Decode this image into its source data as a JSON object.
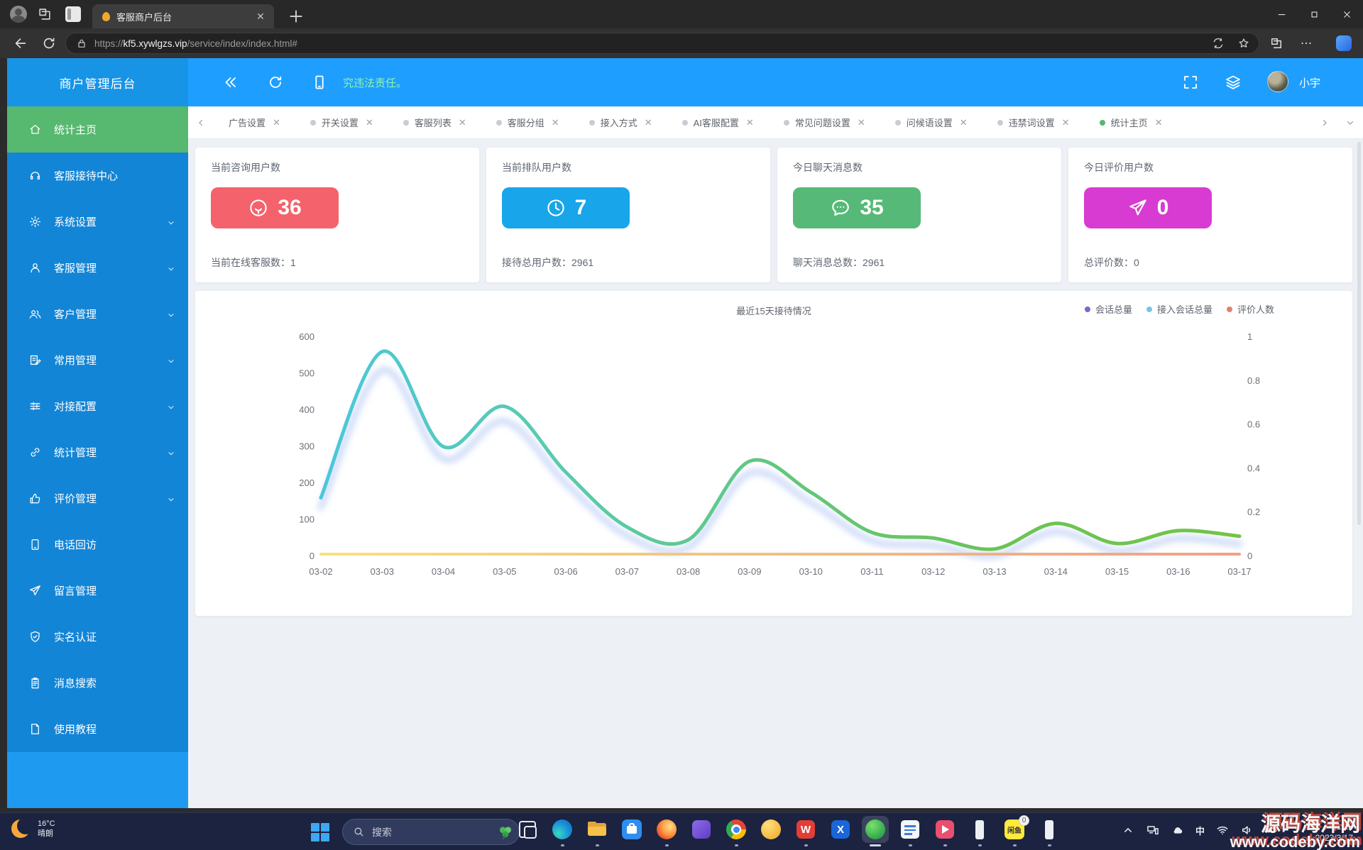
{
  "browser": {
    "tab_title": "客服商户后台",
    "url": {
      "scheme": "https://",
      "host": "kf5.xywlgzs.vip",
      "path": "/service/index/index.html#"
    }
  },
  "app_header": {
    "marquee_text": "究违法责任。",
    "username": "小宇"
  },
  "sidebar": {
    "title": "商户管理后台",
    "items": [
      {
        "label": "统计主页",
        "icon": "home",
        "active": true,
        "arrow": false
      },
      {
        "label": "客服接待中心",
        "icon": "headset",
        "active": false,
        "arrow": false
      },
      {
        "label": "系统设置",
        "icon": "gear",
        "active": false,
        "arrow": true
      },
      {
        "label": "客服管理",
        "icon": "user",
        "active": false,
        "arrow": true
      },
      {
        "label": "客户管理",
        "icon": "users",
        "active": false,
        "arrow": true
      },
      {
        "label": "常用管理",
        "icon": "note",
        "active": false,
        "arrow": true
      },
      {
        "label": "对接配置",
        "icon": "sliders",
        "active": false,
        "arrow": true
      },
      {
        "label": "统计管理",
        "icon": "link",
        "active": false,
        "arrow": true
      },
      {
        "label": "评价管理",
        "icon": "thumbs-up",
        "active": false,
        "arrow": true
      },
      {
        "label": "电话回访",
        "icon": "phone",
        "active": false,
        "arrow": false
      },
      {
        "label": "留言管理",
        "icon": "send",
        "active": false,
        "arrow": false
      },
      {
        "label": "实名认证",
        "icon": "shield-check",
        "active": false,
        "arrow": false
      },
      {
        "label": "消息搜索",
        "icon": "clipboard",
        "active": false,
        "arrow": false
      },
      {
        "label": "使用教程",
        "icon": "file",
        "active": false,
        "arrow": false
      }
    ]
  },
  "tabs": [
    {
      "label": "广告设置",
      "dot": false,
      "active": false
    },
    {
      "label": "开关设置",
      "dot": true,
      "active": false
    },
    {
      "label": "客服列表",
      "dot": true,
      "active": false
    },
    {
      "label": "客服分组",
      "dot": true,
      "active": false
    },
    {
      "label": "接入方式",
      "dot": true,
      "active": false
    },
    {
      "label": "AI客服配置",
      "dot": true,
      "active": false
    },
    {
      "label": "常见问题设置",
      "dot": true,
      "active": false
    },
    {
      "label": "问候语设置",
      "dot": true,
      "active": false
    },
    {
      "label": "违禁词设置",
      "dot": true,
      "active": false
    },
    {
      "label": "统计主页",
      "dot": true,
      "active": true
    }
  ],
  "stat_cards": [
    {
      "title": "当前咨询用户数",
      "value": "36",
      "icon": "chat-smile",
      "color": "#F4626B",
      "footer_label": "当前在线客服数",
      "footer_value": "1"
    },
    {
      "title": "当前排队用户数",
      "value": "7",
      "icon": "clock",
      "color": "#18A5EA",
      "footer_label": "接待总用户数",
      "footer_value": "2961"
    },
    {
      "title": "今日聊天消息数",
      "value": "35",
      "icon": "chat-dots",
      "color": "#57B977",
      "footer_label": "聊天消息总数",
      "footer_value": "2961"
    },
    {
      "title": "今日评价用户数",
      "value": "0",
      "icon": "paper-plane",
      "color": "#D83BD1",
      "footer_label": "总评价数",
      "footer_value": "0"
    }
  ],
  "chart_data": {
    "type": "line",
    "title": "最近15天接待情况",
    "x": [
      "03-02",
      "03-03",
      "03-04",
      "03-05",
      "03-06",
      "03-07",
      "03-08",
      "03-09",
      "03-10",
      "03-11",
      "03-12",
      "03-13",
      "03-14",
      "03-15",
      "03-16",
      "03-17"
    ],
    "yticks_left": [
      "600",
      "500",
      "400",
      "300",
      "200",
      "100",
      "0"
    ],
    "yticks_right": [
      "1",
      "0.8",
      "0.6",
      "0.4",
      "0.2",
      "0"
    ],
    "ylim_left": [
      0,
      600
    ],
    "ylim_right": [
      0,
      1
    ],
    "grid": false,
    "legend_position": "top-right",
    "series": [
      {
        "name": "会话总量",
        "legend_color": "#7B68C8",
        "axis": "left",
        "values": [
          160,
          560,
          300,
          410,
          230,
          80,
          45,
          260,
          175,
          65,
          50,
          20,
          90,
          35,
          70,
          55
        ]
      },
      {
        "name": "接入会话总量",
        "legend_color": "#74C7E3",
        "axis": "left",
        "values": [
          150,
          525,
          282,
          385,
          215,
          72,
          40,
          243,
          162,
          58,
          45,
          17,
          83,
          30,
          64,
          49
        ]
      },
      {
        "name": "评价人数",
        "legend_color": "#E2826B",
        "axis": "right",
        "values": [
          0,
          0,
          0,
          0,
          0,
          0,
          0,
          0,
          0,
          0,
          0,
          0,
          0,
          0,
          0,
          0
        ]
      }
    ],
    "line_gradient": [
      "#4BC7DC",
      "#59CBAE",
      "#62C77E",
      "#6BC455",
      "#74C347"
    ],
    "flat_line_gradient": [
      "#F8E27A",
      "#F3BD82",
      "#EFA189"
    ]
  },
  "taskbar": {
    "weather": {
      "temp": "16°C",
      "condition": "晴朗"
    },
    "search_placeholder": "搜索",
    "apps": [
      {
        "name": "task-view"
      },
      {
        "name": "edge",
        "dot": true
      },
      {
        "name": "file-explorer",
        "dot": true
      },
      {
        "name": "ms-store"
      },
      {
        "name": "firefox",
        "dot": true
      },
      {
        "name": "purple-app"
      },
      {
        "name": "chrome",
        "dot": true
      },
      {
        "name": "yellow-browser"
      },
      {
        "name": "wps",
        "label": "W",
        "dot": true
      },
      {
        "name": "blue-x-app",
        "label": "X"
      },
      {
        "name": "green-app",
        "active": true
      },
      {
        "name": "notepad",
        "dot": true
      },
      {
        "name": "pink-video-app",
        "dot": true
      },
      {
        "name": "white-app-1",
        "dot": true
      },
      {
        "name": "xianyu",
        "label": "闲鱼",
        "badge": "0",
        "dot": true
      },
      {
        "name": "white-app-2",
        "dot": true
      }
    ],
    "ime_label": "中",
    "clock": {
      "time": "1:13",
      "date": "2023/3/17"
    },
    "watermark": {
      "line1": "源码海洋网",
      "line2": "www.codeby.com"
    }
  }
}
